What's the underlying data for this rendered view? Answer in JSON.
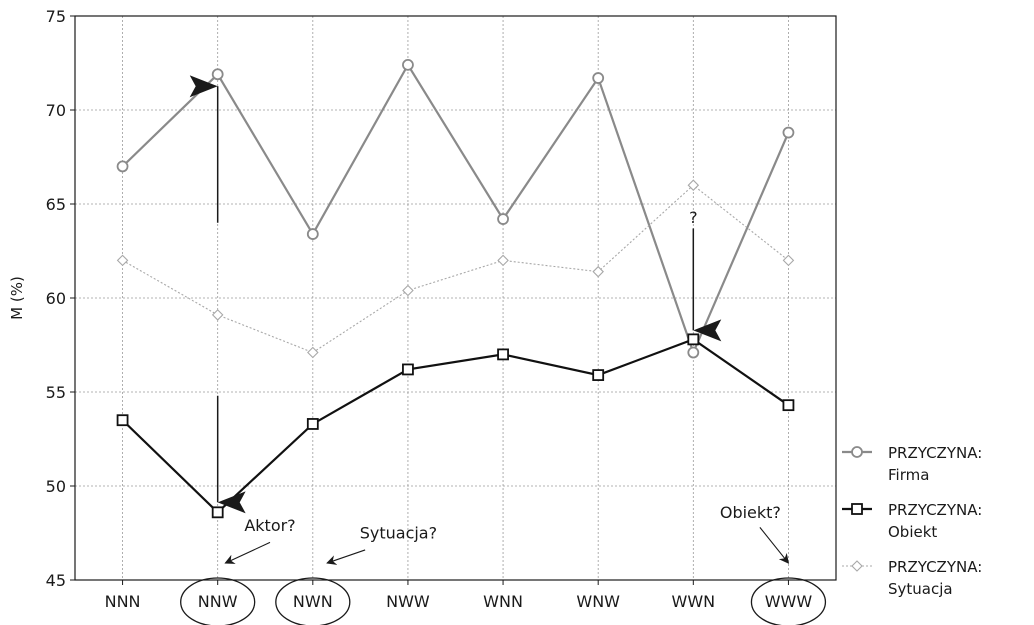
{
  "chart_data": {
    "type": "line",
    "title": "",
    "xlabel": "",
    "ylabel": "M (%)",
    "ylim": [
      45,
      75
    ],
    "yticks": [
      45,
      50,
      55,
      60,
      65,
      70,
      75
    ],
    "categories": [
      "NNN",
      "NNW",
      "NWN",
      "NWW",
      "WNN",
      "WNW",
      "WWN",
      "WWW"
    ],
    "grid": true,
    "legend_position": "bottom-right",
    "series": [
      {
        "name": "PRZYCZYNA: Firma",
        "legend_lines": [
          "PRZYCZYNA:",
          "Firma"
        ],
        "marker": "circle",
        "color": "#8a8a8a",
        "line_style": "solid",
        "values": [
          67.0,
          71.9,
          63.4,
          72.4,
          64.2,
          71.7,
          57.1,
          68.8
        ]
      },
      {
        "name": "PRZYCZYNA: Obiekt",
        "legend_lines": [
          "PRZYCZYNA:",
          "Obiekt"
        ],
        "marker": "square",
        "color": "#111111",
        "line_style": "solid",
        "values": [
          53.5,
          48.6,
          53.3,
          56.2,
          57.0,
          55.9,
          57.8,
          54.3
        ]
      },
      {
        "name": "PRZYCZYNA: Sytuacja",
        "legend_lines": [
          "PRZYCZYNA:",
          "Sytuacja"
        ],
        "marker": "diamond",
        "color": "#a8a8a8",
        "line_style": "dotted",
        "values": [
          62.0,
          59.1,
          57.1,
          60.4,
          62.0,
          61.4,
          66.0,
          62.0
        ]
      }
    ],
    "annotations": [
      {
        "text": "Aktor?",
        "category": "NNW"
      },
      {
        "text": "Sytuacja?",
        "category": "NWN"
      },
      {
        "text": "Obiekt?",
        "category": "WWW"
      },
      {
        "text": "?",
        "category": "WWN"
      }
    ],
    "circled_categories": [
      "NNW",
      "NWN",
      "WWW"
    ]
  }
}
